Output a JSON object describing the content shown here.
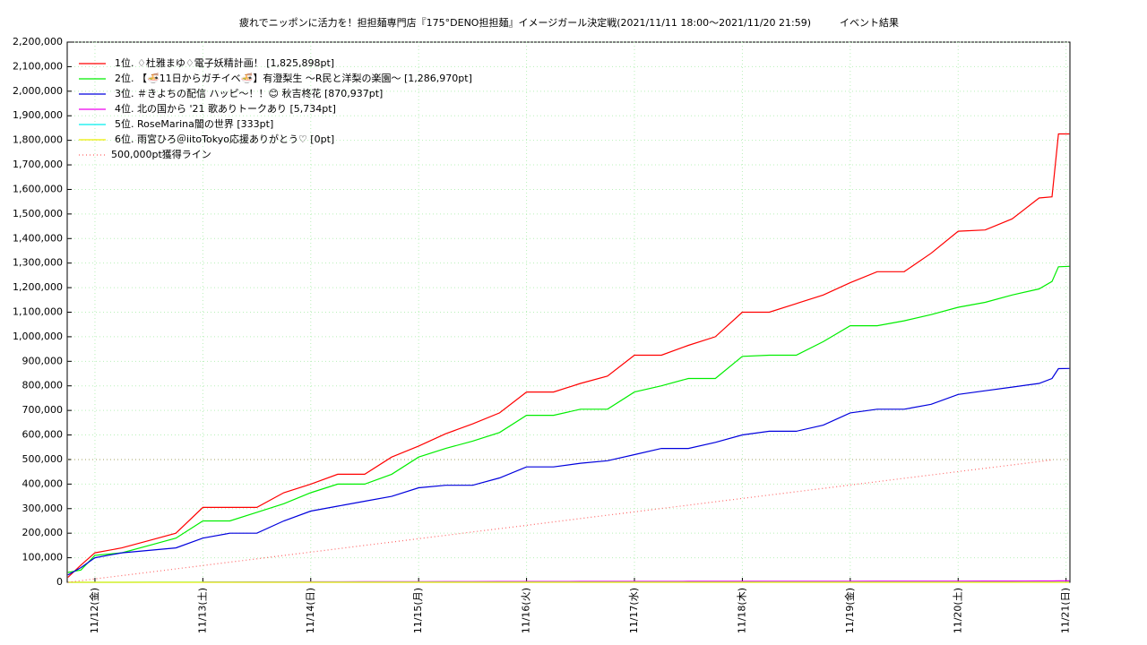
{
  "chart_data": {
    "type": "line",
    "title": "疲れでニッポンに活力を！担担麺専門店『175°DENO担担麺』イメージガール決定戦(2021/11/11 18:00～2021/11/20 21:59)",
    "subtitle": "イベント結果",
    "x": [
      11.75,
      11.87,
      12,
      12.25,
      12.5,
      12.75,
      13,
      13.25,
      13.5,
      13.75,
      14,
      14.25,
      14.5,
      14.75,
      15,
      15.25,
      15.5,
      15.75,
      16,
      16.25,
      16.5,
      16.75,
      17,
      17.25,
      17.5,
      17.75,
      18,
      18.25,
      18.5,
      18.75,
      19,
      19.25,
      19.5,
      19.75,
      20,
      20.25,
      20.5,
      20.75,
      20.87,
      20.93,
      21.03
    ],
    "series": [
      {
        "name": "1位. ♢杜雅まゆ♢電子妖精計画！ [1,825,898pt]",
        "color": "#ff0000",
        "style": "solid",
        "values": [
          20000,
          70000,
          120000,
          140000,
          170000,
          200000,
          305000,
          305000,
          305000,
          365000,
          400000,
          440000,
          440000,
          510000,
          555000,
          605000,
          645000,
          690000,
          775000,
          775000,
          810000,
          840000,
          925000,
          925000,
          965000,
          1000000,
          1100000,
          1100000,
          1135000,
          1170000,
          1220000,
          1265000,
          1265000,
          1340000,
          1430000,
          1435000,
          1480000,
          1565000,
          1570000,
          1825898,
          1825898
        ]
      },
      {
        "name": "2位. 【🍜11日からガチイベ🍜】有澄梨生 〜R民と洋梨の楽園〜 [1,286,970pt]",
        "color": "#00ee00",
        "style": "solid",
        "values": [
          40000,
          50000,
          110000,
          120000,
          150000,
          180000,
          250000,
          250000,
          285000,
          320000,
          365000,
          400000,
          400000,
          440000,
          510000,
          545000,
          575000,
          610000,
          680000,
          680000,
          705000,
          705000,
          775000,
          800000,
          830000,
          830000,
          920000,
          925000,
          925000,
          980000,
          1045000,
          1045000,
          1065000,
          1090000,
          1120000,
          1140000,
          1170000,
          1195000,
          1225000,
          1285000,
          1286970
        ]
      },
      {
        "name": "3位. ＃きよちの配信 ハッピ〜！！😊 秋吉柊花 [870,937pt]",
        "color": "#0000dd",
        "style": "solid",
        "values": [
          30000,
          60000,
          100000,
          120000,
          130000,
          140000,
          180000,
          200000,
          200000,
          250000,
          290000,
          310000,
          330000,
          350000,
          385000,
          395000,
          395000,
          425000,
          470000,
          470000,
          485000,
          495000,
          520000,
          545000,
          545000,
          570000,
          600000,
          615000,
          615000,
          640000,
          690000,
          705000,
          705000,
          725000,
          765000,
          780000,
          795000,
          810000,
          830000,
          870000,
          870937
        ]
      },
      {
        "name": "4位. 北の国から '21 歌ありトークあり [5,734pt]",
        "color": "#ee00ee",
        "style": "solid",
        "values": [
          null,
          null,
          null,
          null,
          null,
          null,
          1000,
          1200,
          1400,
          1600,
          1800,
          2000,
          2200,
          2400,
          2600,
          2800,
          3000,
          3200,
          3300,
          3400,
          3500,
          3600,
          3700,
          3800,
          3900,
          4000,
          4100,
          4200,
          4300,
          4400,
          4500,
          4600,
          4700,
          4800,
          4900,
          5000,
          5200,
          5400,
          5600,
          5700,
          5734
        ]
      },
      {
        "name": "5位. RoseMarina闇の世界 [333pt]",
        "color": "#00eeee",
        "style": "solid",
        "values": [
          0,
          0,
          0,
          0,
          333,
          333,
          333,
          333,
          333,
          333,
          333,
          333,
          333,
          333,
          333,
          333,
          333,
          333,
          333,
          333,
          333,
          333,
          333,
          333,
          333,
          333,
          333,
          333,
          333,
          333,
          333,
          333,
          333,
          333,
          333,
          333,
          333,
          333,
          333,
          333,
          333
        ]
      },
      {
        "name": "6位. 雨宮ひろ＠iitoTokyo応援ありがとう♡ [0pt]",
        "color": "#eeee00",
        "style": "solid",
        "values": [
          0,
          0,
          0,
          0,
          0,
          0,
          0,
          0,
          0,
          0,
          0,
          0,
          0,
          0,
          0,
          0,
          0,
          0,
          0,
          0,
          0,
          0,
          0,
          0,
          0,
          0,
          0,
          0,
          0,
          0,
          0,
          0,
          0,
          0,
          0,
          0,
          0,
          0,
          0,
          0,
          0
        ]
      },
      {
        "name": "500,000pt獲得ライン",
        "color": "#ff6666",
        "style": "dotted",
        "values": [
          0,
          6600,
          13700,
          27300,
          41000,
          54600,
          68300,
          82000,
          95600,
          109300,
          123000,
          136600,
          150300,
          163900,
          177600,
          191300,
          204900,
          218600,
          232200,
          245900,
          259600,
          273200,
          286900,
          300500,
          314200,
          327900,
          341500,
          355200,
          368800,
          382500,
          396200,
          409800,
          423500,
          437200,
          450800,
          464500,
          478100,
          491800,
          498400,
          null,
          null
        ]
      }
    ],
    "reference_line": 500000,
    "xlim": [
      11.743,
      21.036
    ],
    "xticks": [
      {
        "value": 12,
        "label": "11/12(金)"
      },
      {
        "value": 13,
        "label": "11/13(土)"
      },
      {
        "value": 14,
        "label": "11/14(日)"
      },
      {
        "value": 15,
        "label": "11/15(月)"
      },
      {
        "value": 16,
        "label": "11/16(火)"
      },
      {
        "value": 17,
        "label": "11/17(水)"
      },
      {
        "value": 18,
        "label": "11/18(木)"
      },
      {
        "value": 19,
        "label": "11/19(金)"
      },
      {
        "value": 20,
        "label": "11/20(土)"
      },
      {
        "value": 21,
        "label": "11/21(日)"
      }
    ],
    "ylim": [
      0,
      2200000
    ],
    "yticks": [
      0,
      {
        "value": 100000,
        "label": "100,000"
      },
      {
        "value": 200000,
        "label": "200,000"
      },
      {
        "value": 300000,
        "label": "300,000"
      },
      {
        "value": 400000,
        "label": "400,000"
      },
      {
        "value": 500000,
        "label": "500,000"
      },
      {
        "value": 600000,
        "label": "600,000"
      },
      {
        "value": 700000,
        "label": "700,000"
      },
      {
        "value": 800000,
        "label": "800,000"
      },
      {
        "value": 900000,
        "label": "900,000"
      },
      {
        "value": 1000000,
        "label": "1,000,000"
      },
      {
        "value": 1100000,
        "label": "1,100,000"
      },
      {
        "value": 1200000,
        "label": "1,200,000"
      },
      {
        "value": 1300000,
        "label": "1,300,000"
      },
      {
        "value": 1400000,
        "label": "1,400,000"
      },
      {
        "value": 1500000,
        "label": "1,500,000"
      },
      {
        "value": 1600000,
        "label": "1,600,000"
      },
      {
        "value": 1700000,
        "label": "1,700,000"
      },
      {
        "value": 1800000,
        "label": "1,800,000"
      },
      {
        "value": 1900000,
        "label": "1,900,000"
      },
      {
        "value": 2000000,
        "label": "2,000,000"
      },
      {
        "value": 2100000,
        "label": "2,100,000"
      },
      {
        "value": 2200000,
        "label": "2,200,000"
      }
    ],
    "grid": true,
    "grid_color": "#b8f0b8",
    "legend": "top-left"
  }
}
